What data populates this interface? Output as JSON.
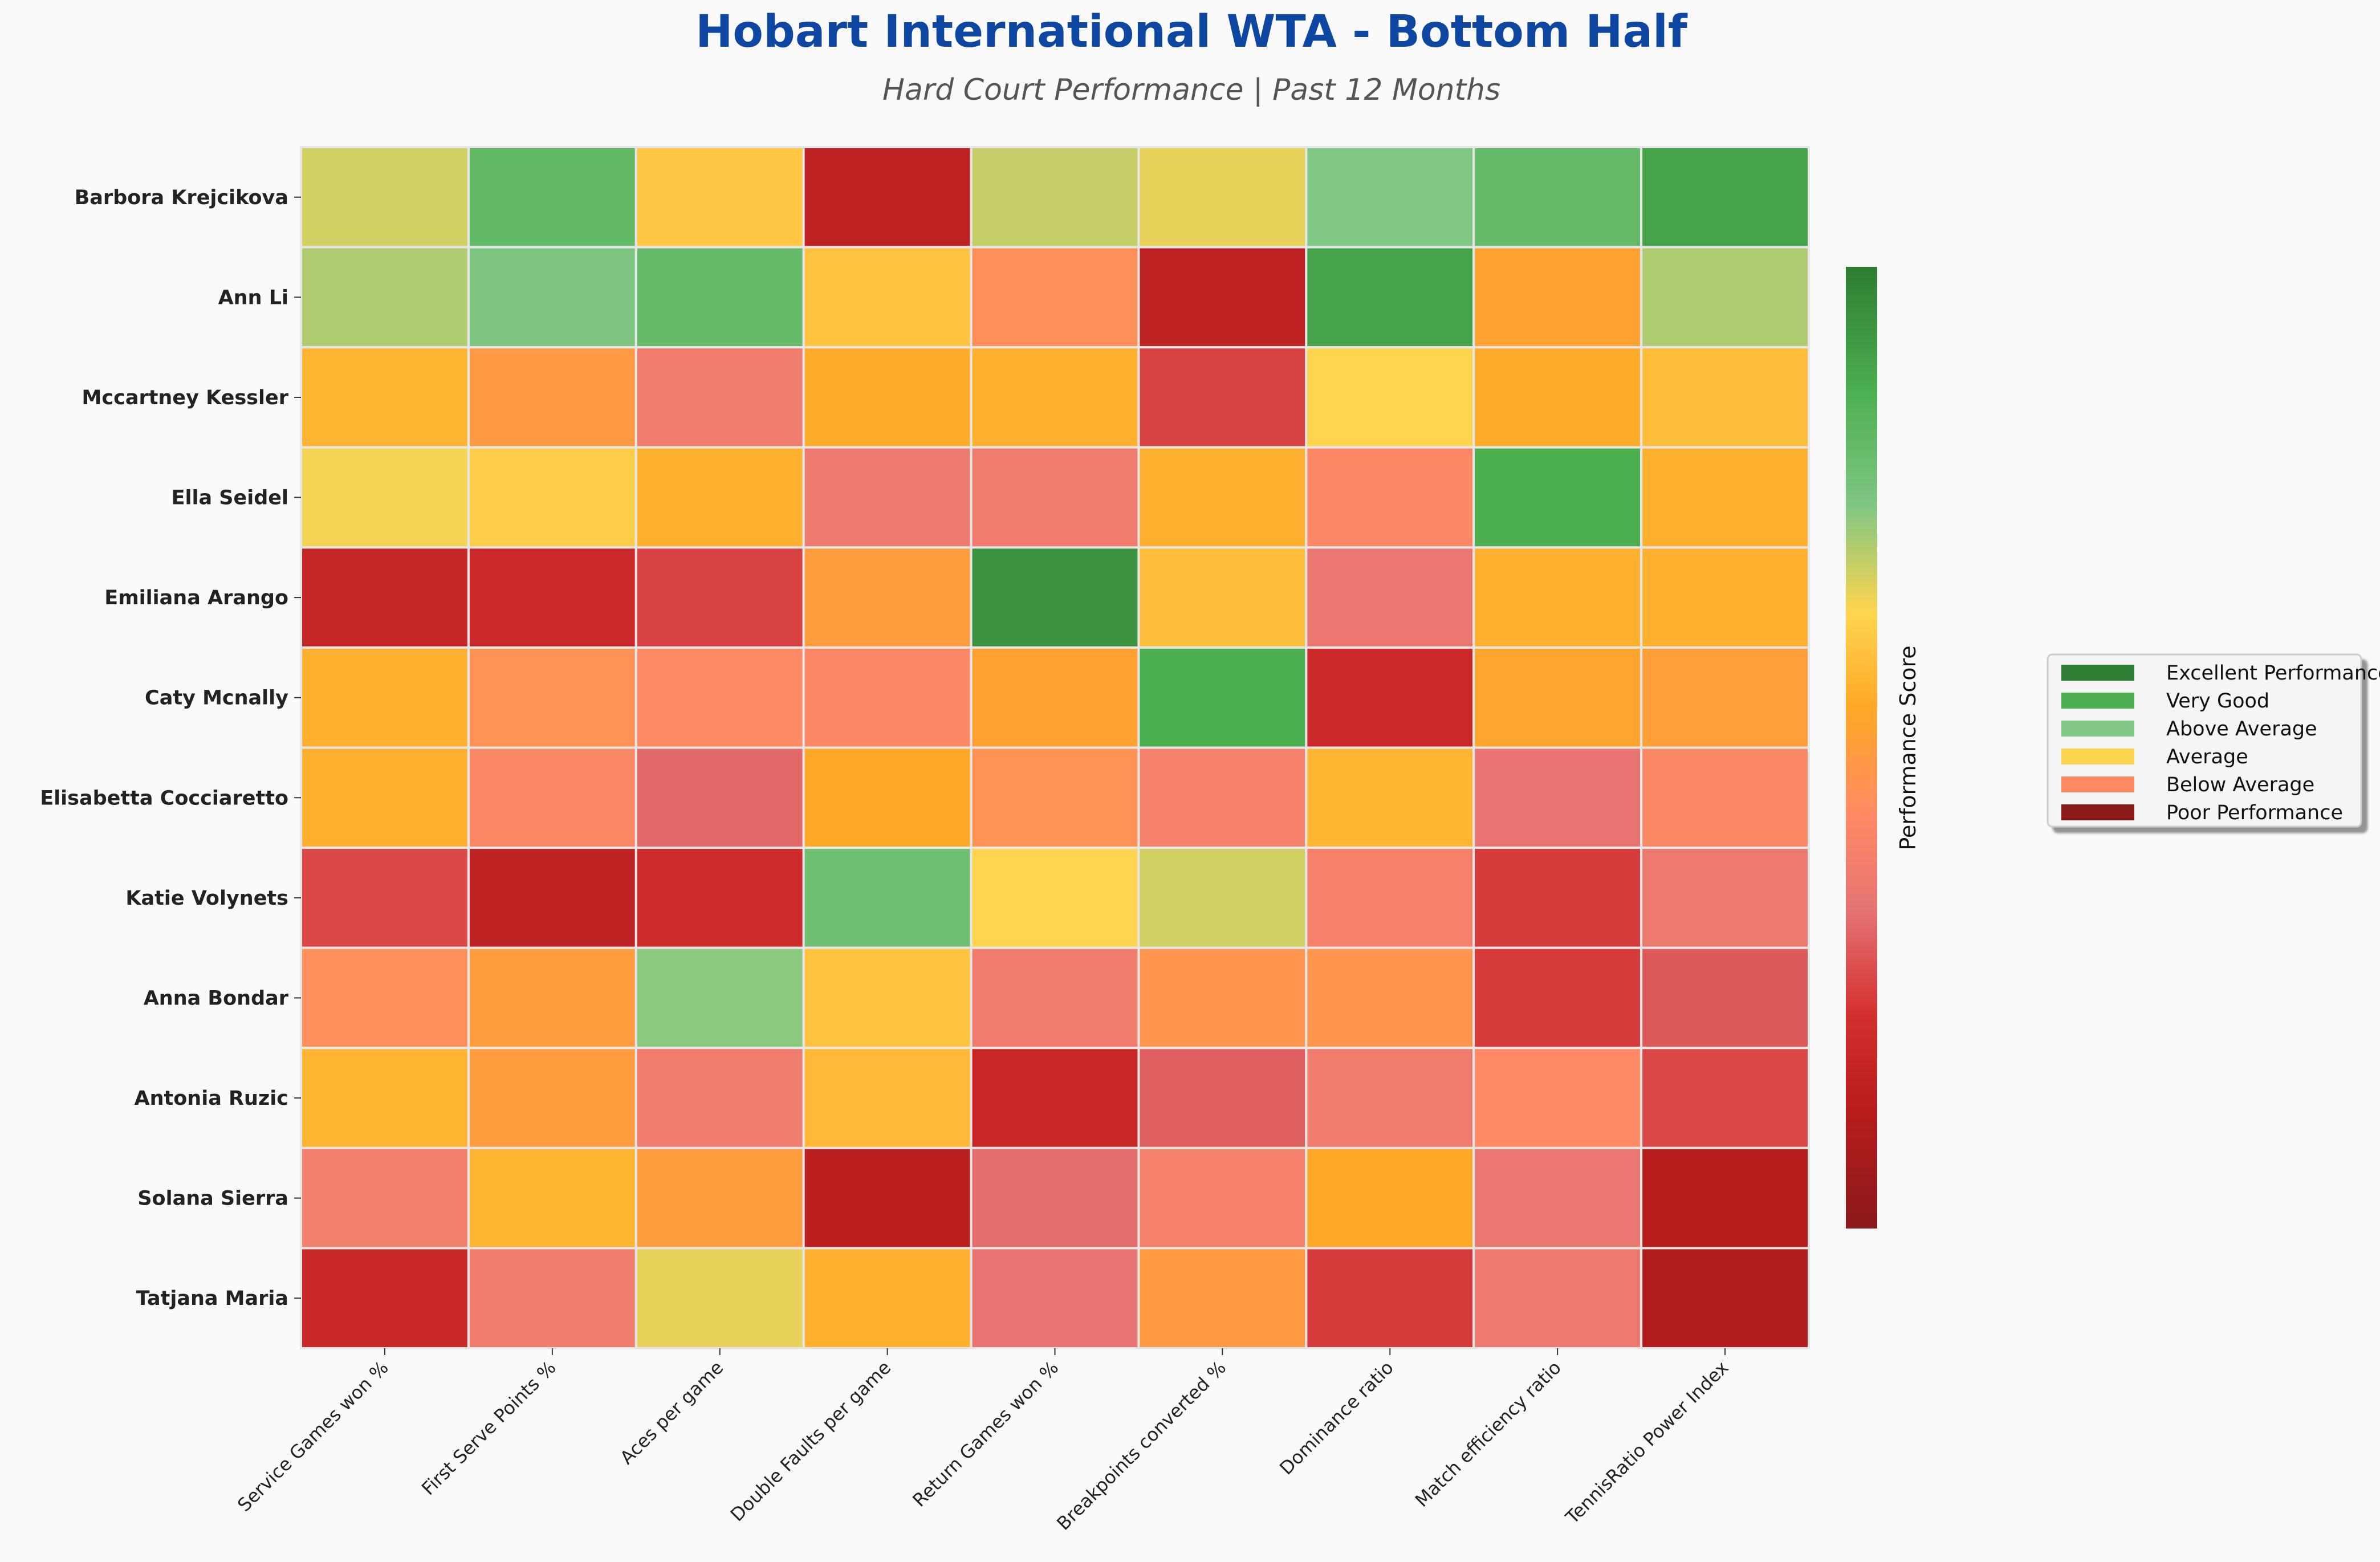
{
  "chart_data": {
    "type": "heatmap",
    "title": "Hobart International WTA - Bottom Half",
    "subtitle": "Hard Court Performance | Past 12 Months",
    "rows": [
      "Barbora Krejcikova",
      "Ann Li",
      "Mccartney Kessler",
      "Ella Seidel",
      "Emiliana Arango",
      "Caty Mcnally",
      "Elisabetta Cocciaretto",
      "Katie Volynets",
      "Anna Bondar",
      "Antonia Ruzic",
      "Solana Sierra",
      "Tatjana Maria"
    ],
    "columns": [
      "Service Games won %",
      "First Serve Points %",
      "Aces per game",
      "Double Faults per game",
      "Return Games won %",
      "Breakpoints converted %",
      "Dominance ratio",
      "Match efficiency ratio",
      "TennisRatio Power Index"
    ],
    "values": [
      [
        0.68,
        0.82,
        0.61,
        0.15,
        0.69,
        0.66,
        0.75,
        0.81,
        0.9
      ],
      [
        0.71,
        0.76,
        0.81,
        0.6,
        0.45,
        0.15,
        0.9,
        0.52,
        0.71
      ],
      [
        0.57,
        0.49,
        0.37,
        0.55,
        0.56,
        0.25,
        0.64,
        0.55,
        0.59
      ],
      [
        0.65,
        0.62,
        0.56,
        0.36,
        0.37,
        0.56,
        0.42,
        0.87,
        0.56
      ],
      [
        0.17,
        0.19,
        0.25,
        0.5,
        0.94,
        0.59,
        0.35,
        0.56,
        0.56
      ],
      [
        0.56,
        0.46,
        0.43,
        0.42,
        0.52,
        0.87,
        0.19,
        0.53,
        0.51
      ],
      [
        0.56,
        0.42,
        0.31,
        0.54,
        0.46,
        0.39,
        0.57,
        0.34,
        0.42
      ],
      [
        0.26,
        0.15,
        0.2,
        0.79,
        0.64,
        0.68,
        0.39,
        0.24,
        0.36
      ],
      [
        0.45,
        0.5,
        0.74,
        0.6,
        0.37,
        0.47,
        0.47,
        0.24,
        0.29
      ],
      [
        0.57,
        0.5,
        0.37,
        0.58,
        0.18,
        0.3,
        0.37,
        0.43,
        0.26
      ],
      [
        0.38,
        0.57,
        0.5,
        0.13,
        0.32,
        0.39,
        0.54,
        0.35,
        0.12
      ],
      [
        0.18,
        0.37,
        0.66,
        0.56,
        0.34,
        0.49,
        0.24,
        0.36,
        0.11
      ]
    ],
    "value_range": [
      0,
      1
    ],
    "colorbar_label": "Performance Score",
    "colormap": [
      "#8b1a1a",
      "#b71c1c",
      "#d32f2f",
      "#e57373",
      "#ff8a65",
      "#ffa726",
      "#ffd54f",
      "#81c784",
      "#4caf50",
      "#2e7d32"
    ],
    "legend": {
      "placement": "right",
      "entries": [
        {
          "label": "Excellent Performance",
          "color": "#2e7d32"
        },
        {
          "label": "Very Good",
          "color": "#4caf50"
        },
        {
          "label": "Above Average",
          "color": "#81c784"
        },
        {
          "label": "Average",
          "color": "#ffd54f"
        },
        {
          "label": "Below Average",
          "color": "#ff8a65"
        },
        {
          "label": "Poor Performance",
          "color": "#8b1a1a"
        }
      ]
    }
  }
}
